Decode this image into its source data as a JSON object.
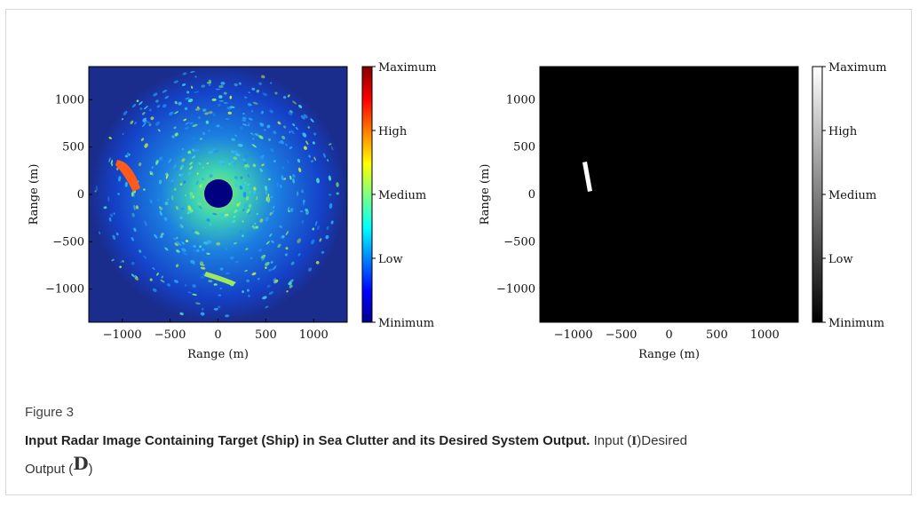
{
  "figure": {
    "label": "Figure 3",
    "caption_bold": "Input Radar Image Containing Target (Ship) in Sea Clutter and its Desired System Output.",
    "caption_pre": " Input (",
    "symbol_input": "I",
    "caption_mid": ")Desired",
    "caption_mid2": "Output (",
    "symbol_output": "D",
    "caption_end": ")"
  },
  "chart_data": [
    {
      "type": "heatmap",
      "title": "",
      "xlabel": "Range (m)",
      "ylabel": "Range (m)",
      "xlim": [
        -1350,
        1350
      ],
      "ylim": [
        -1350,
        1350
      ],
      "x_ticks": [
        "−1000",
        "−500",
        "0",
        "500",
        "1000"
      ],
      "y_ticks": [
        "1000",
        "500",
        "0",
        "−500",
        "−1000"
      ],
      "colormap": "jet",
      "colorbar_labels": [
        "Maximum",
        "High",
        "Medium",
        "Low",
        "Minimum"
      ],
      "colors": {
        "background": "#1a2c8c",
        "min": "#00008f",
        "max": "#800000"
      }
    },
    {
      "type": "heatmap",
      "title": "",
      "xlabel": "Range (m)",
      "ylabel": "Range (m)",
      "xlim": [
        -1350,
        1350
      ],
      "ylim": [
        -1350,
        1350
      ],
      "x_ticks": [
        "−1000",
        "−500",
        "0",
        "500",
        "1000"
      ],
      "y_ticks": [
        "1000",
        "500",
        "0",
        "−500",
        "−1000"
      ],
      "colormap": "gray",
      "colorbar_labels": [
        "Maximum",
        "High",
        "Medium",
        "Low",
        "Minimum"
      ],
      "colors": {
        "background": "#000000",
        "target": "#ffffff"
      }
    }
  ]
}
